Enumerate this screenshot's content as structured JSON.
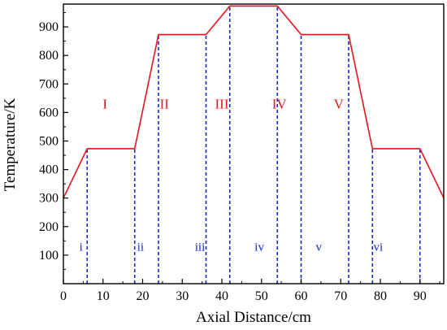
{
  "chart_data": {
    "type": "line",
    "title": "",
    "xlabel": "Axial Distance/cm",
    "ylabel": "Temperature/K",
    "xlim": [
      0,
      96
    ],
    "ylim": [
      0,
      980
    ],
    "xticks": [
      0,
      10,
      20,
      30,
      40,
      50,
      60,
      70,
      80,
      90
    ],
    "yticks": [
      100,
      200,
      300,
      400,
      500,
      600,
      700,
      800,
      900
    ],
    "grid": false,
    "series": [
      {
        "name": "",
        "color": "#e8141c",
        "x": [
          0,
          6,
          18,
          24,
          36,
          42,
          54,
          60,
          72,
          78,
          90,
          96
        ],
        "y": [
          300,
          473,
          473,
          873,
          873,
          973,
          973,
          873,
          873,
          473,
          473,
          300
        ]
      }
    ],
    "boundaries": {
      "color": "#1428c8",
      "style": "dashed",
      "lines": [
        {
          "x": 6,
          "y": 473
        },
        {
          "x": 18,
          "y": 473
        },
        {
          "x": 24,
          "y": 873
        },
        {
          "x": 36,
          "y": 873
        },
        {
          "x": 42,
          "y": 973
        },
        {
          "x": 54,
          "y": 973
        },
        {
          "x": 60,
          "y": 873
        },
        {
          "x": 72,
          "y": 873
        },
        {
          "x": 78,
          "y": 473
        },
        {
          "x": 90,
          "y": 473
        }
      ]
    },
    "region_labels": {
      "color": "#e8141c",
      "items": [
        {
          "text": "I",
          "x": 10.5,
          "y": 400
        },
        {
          "text": "II",
          "x": 25.5,
          "y": 400
        },
        {
          "text": "III",
          "x": 40,
          "y": 400
        },
        {
          "text": "IV",
          "x": 54.5,
          "y": 400
        },
        {
          "text": "V",
          "x": 69.5,
          "y": 400
        }
      ]
    },
    "sub_labels": {
      "color": "#1428c8",
      "items": [
        {
          "text": "i",
          "x": 2,
          "y": 130
        },
        {
          "text": "ii",
          "x": 17,
          "y": 130
        },
        {
          "text": "iii",
          "x": 32,
          "y": 130
        },
        {
          "text": "iv",
          "x": 47,
          "y": 130
        },
        {
          "text": "v",
          "x": 62,
          "y": 130
        },
        {
          "text": "vi",
          "x": 77,
          "y": 130
        }
      ]
    }
  }
}
